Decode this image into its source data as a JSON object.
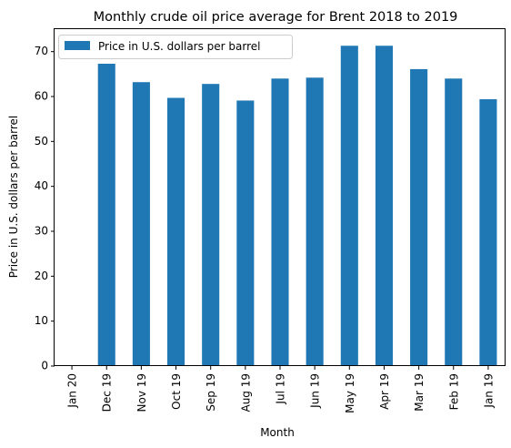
{
  "chart_data": {
    "type": "bar",
    "title": "Monthly crude oil price average for Brent 2018 to 2019",
    "xlabel": "Month",
    "ylabel": "Price in U.S. dollars per barrel",
    "categories": [
      "Jan 20",
      "Dec 19",
      "Nov 19",
      "Oct 19",
      "Sep 19",
      "Aug 19",
      "Jul 19",
      "Jun 19",
      "May 19",
      "Apr 19",
      "Mar 19",
      "Feb 19",
      "Jan 19"
    ],
    "series": [
      {
        "name": "Price in U.S. dollars per barrel",
        "values": [
          0,
          67.3,
          63.2,
          59.7,
          62.8,
          59.1,
          64.0,
          64.2,
          71.3,
          71.3,
          66.1,
          64.0,
          59.4
        ]
      }
    ],
    "ylim": [
      0,
      75
    ],
    "yticks": [
      0,
      10,
      20,
      30,
      40,
      50,
      60,
      70
    ],
    "grid": false,
    "legend_position": "top-left",
    "colors": {
      "bar": "#1f77b4"
    }
  }
}
